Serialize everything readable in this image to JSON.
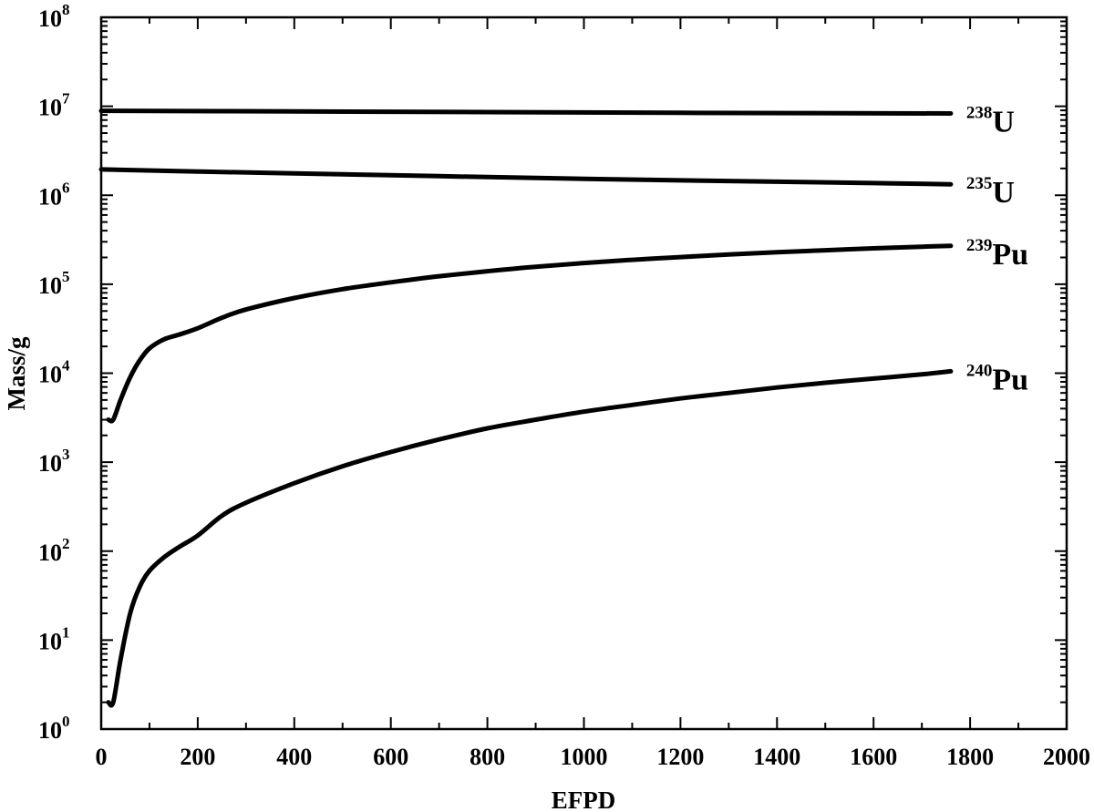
{
  "chart_data": {
    "type": "line",
    "xlabel": "EFPD",
    "ylabel": "Mass/g",
    "xlim": [
      0,
      2000
    ],
    "ylim": [
      1,
      100000000
    ],
    "yscale": "log",
    "grid": false,
    "xticks": [
      "0",
      "200",
      "400",
      "600",
      "800",
      "1000",
      "1200",
      "1400",
      "1600",
      "1800",
      "2000"
    ],
    "yticks": [
      {
        "base": "10",
        "exp": "0"
      },
      {
        "base": "10",
        "exp": "1"
      },
      {
        "base": "10",
        "exp": "2"
      },
      {
        "base": "10",
        "exp": "3"
      },
      {
        "base": "10",
        "exp": "4"
      },
      {
        "base": "10",
        "exp": "5"
      },
      {
        "base": "10",
        "exp": "6"
      },
      {
        "base": "10",
        "exp": "7"
      },
      {
        "base": "10",
        "exp": "8"
      }
    ],
    "series": [
      {
        "name": "238U",
        "label_sup": "238",
        "label_main": "U",
        "x": [
          0,
          400,
          800,
          1200,
          1760
        ],
        "y": [
          8900000,
          8750000,
          8600000,
          8450000,
          8300000
        ]
      },
      {
        "name": "235U",
        "label_sup": "235",
        "label_main": "U",
        "x": [
          0,
          200,
          400,
          600,
          800,
          1000,
          1200,
          1400,
          1600,
          1760
        ],
        "y": [
          1950000,
          1850000,
          1760000,
          1680000,
          1600000,
          1530000,
          1470000,
          1420000,
          1370000,
          1330000
        ]
      },
      {
        "name": "239Pu",
        "label_sup": "239",
        "label_main": "Pu",
        "x": [
          15,
          25,
          40,
          60,
          80,
          100,
          130,
          160,
          200,
          250,
          300,
          400,
          500,
          600,
          700,
          800,
          900,
          1000,
          1100,
          1200,
          1300,
          1400,
          1500,
          1600,
          1700,
          1760
        ],
        "y": [
          3000,
          3000,
          5000,
          9000,
          14000,
          19000,
          24000,
          27000,
          32000,
          42000,
          52000,
          70000,
          88000,
          105000,
          123000,
          140000,
          157000,
          173000,
          188000,
          202000,
          216000,
          229000,
          241000,
          253000,
          264000,
          270000
        ]
      },
      {
        "name": "240Pu",
        "label_sup": "240",
        "label_main": "Pu",
        "x": [
          15,
          25,
          40,
          60,
          80,
          100,
          130,
          160,
          200,
          250,
          300,
          400,
          500,
          600,
          700,
          800,
          900,
          1000,
          1100,
          1200,
          1300,
          1400,
          1500,
          1600,
          1700,
          1760
        ],
        "y": [
          2,
          2,
          6,
          20,
          40,
          60,
          85,
          110,
          150,
          250,
          350,
          580,
          900,
          1300,
          1800,
          2400,
          3000,
          3700,
          4400,
          5200,
          6000,
          6900,
          7800,
          8700,
          9700,
          10500
        ]
      }
    ]
  }
}
